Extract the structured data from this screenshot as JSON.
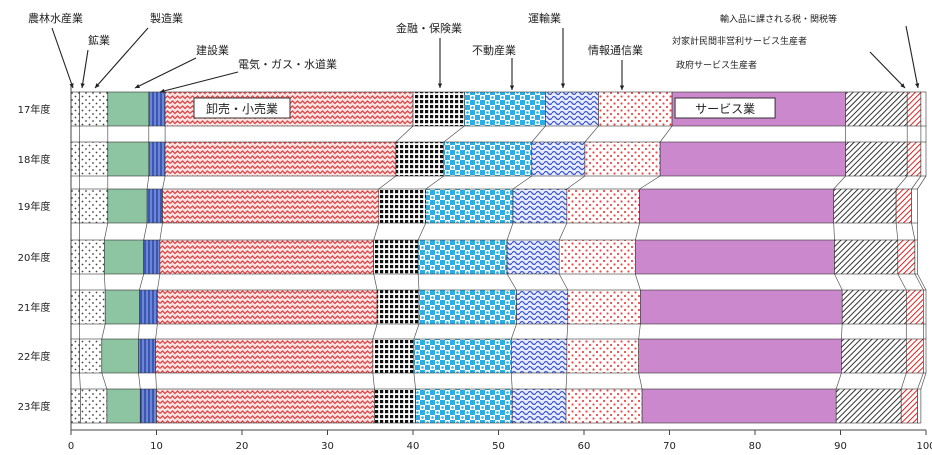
{
  "chart_data": {
    "type": "bar",
    "orientation": "horizontal",
    "stacked": true,
    "xlim": [
      0,
      100
    ],
    "x_ticks": [
      "0",
      "10",
      "20",
      "30",
      "40",
      "50",
      "60",
      "70",
      "80",
      "90",
      "100"
    ],
    "categories": [
      "17年度",
      "18年度",
      "19年度",
      "20年度",
      "21年度",
      "22年度",
      "23年度"
    ],
    "series": [
      {
        "name": "農林水産業",
        "color": "#ffffff",
        "pattern": "dots",
        "values": [
          1.0,
          1.0,
          1.0,
          1.0,
          1.0,
          1.0,
          1.1
        ]
      },
      {
        "name": "鉱業",
        "color": "#ffffff",
        "pattern": "dots",
        "values": [
          3.3,
          3.3,
          3.3,
          2.9,
          3.0,
          2.6,
          3.1
        ]
      },
      {
        "name": "製造業",
        "color": "#8dc4a2",
        "pattern": "solid",
        "values": [
          4.8,
          4.8,
          4.6,
          4.6,
          4.0,
          4.3,
          3.9
        ]
      },
      {
        "name": "建設業",
        "color": "#6b86d6",
        "pattern": "vlines",
        "values": [
          1.9,
          1.9,
          1.8,
          1.9,
          2.1,
          2.0,
          1.9
        ]
      },
      {
        "name": "卸売・小売業",
        "color": "#f04848",
        "pattern": "zigzag",
        "values": [
          29.0,
          27.0,
          25.3,
          25.0,
          25.7,
          25.4,
          25.5
        ]
      },
      {
        "name": "金融・保険業",
        "color": "#222222",
        "pattern": "grid",
        "values": [
          6.0,
          5.6,
          5.5,
          5.2,
          4.9,
          4.8,
          4.8
        ]
      },
      {
        "name": "不動産業",
        "color": "#35b3e6",
        "pattern": "diamonds",
        "values": [
          9.5,
          10.3,
          10.2,
          10.4,
          11.4,
          11.4,
          11.3
        ]
      },
      {
        "name": "運輸業",
        "color": "#4f68d6",
        "pattern": "waves",
        "values": [
          6.2,
          6.2,
          6.3,
          6.1,
          6.0,
          6.5,
          6.3
        ]
      },
      {
        "name": "情報通信業",
        "color": "#ef5555",
        "pattern": "dotgrid",
        "values": [
          8.6,
          8.8,
          8.5,
          8.9,
          8.5,
          8.4,
          8.9
        ]
      },
      {
        "name": "サービス業",
        "color": "#cc88cc",
        "pattern": "solid",
        "values": [
          20.3,
          21.7,
          22.7,
          23.3,
          23.6,
          23.7,
          22.7
        ]
      },
      {
        "name": "政府サービス生産者",
        "color": "#555555",
        "pattern": "diag",
        "values": [
          7.2,
          7.2,
          7.3,
          7.4,
          7.5,
          7.6,
          7.6
        ]
      },
      {
        "name": "対家計民間非営利サービス生産者",
        "color": "#e83030",
        "pattern": "diag",
        "values": [
          1.6,
          1.6,
          1.8,
          2.0,
          2.0,
          2.0,
          1.9
        ]
      },
      {
        "name": "輸入品に課される税・関税等",
        "color": "#ffffff",
        "pattern": "solid",
        "values": [
          0.6,
          0.6,
          0.7,
          0.3,
          0.3,
          0.3,
          0.4
        ]
      }
    ],
    "annotations": {
      "top_labels": [
        "農林水産業",
        "鉱業",
        "製造業",
        "建設業",
        "電気・ガス・水道業",
        "金融・保険業",
        "不動産業",
        "運輸業",
        "情報通信業",
        "輸入品に課される税・関税等",
        "対家計民間非営利サービス生産者",
        "政府サービス生産者"
      ],
      "inside_labels": [
        "卸売・小売業",
        "サービス業"
      ]
    }
  }
}
